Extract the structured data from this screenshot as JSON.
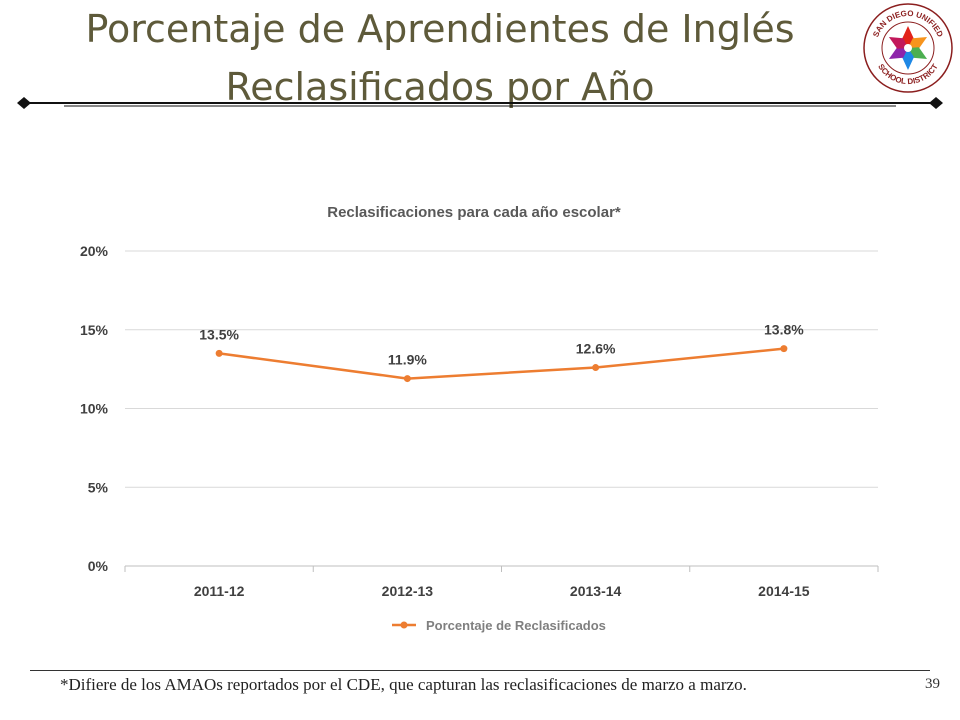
{
  "slide": {
    "title_line1": "Porcentaje de Aprendientes de Inglés",
    "title_line2": "Reclasificados por Año",
    "footnote": "*Difiere de los AMAOs reportados por el CDE, que capturan las reclasificaciones de marzo a marzo.",
    "page_number": "39",
    "logo": {
      "top_text": "SAN DIEGO UNIFIED",
      "bottom_text": "SCHOOL DISTRICT",
      "icon": "star-flower-logo",
      "colors": [
        "#e2231a",
        "#f7941d",
        "#4caf50",
        "#1e88e5",
        "#8e24aa",
        "#c2185b"
      ]
    }
  },
  "chart_data": {
    "type": "line",
    "title": "Reclasificaciones para cada año escolar*",
    "categories": [
      "2011-12",
      "2012-13",
      "2013-14",
      "2014-15"
    ],
    "series": [
      {
        "name": "Porcentaje de Reclasificados",
        "values": [
          13.5,
          11.9,
          12.6,
          13.8
        ],
        "labels": [
          "13.5%",
          "11.9%",
          "12.6%",
          "13.8%"
        ],
        "color": "#ed7d31"
      }
    ],
    "ylim": [
      0,
      20
    ],
    "yticks": [
      0,
      5,
      10,
      15,
      20
    ],
    "ytick_labels": [
      "0%",
      "5%",
      "10%",
      "15%",
      "20%"
    ],
    "grid": true,
    "legend_position": "bottom",
    "colors": {
      "title_text": "#595959",
      "tick_text": "#404040",
      "grid": "#d9d9d9",
      "axis": "#bfbfbf"
    }
  }
}
